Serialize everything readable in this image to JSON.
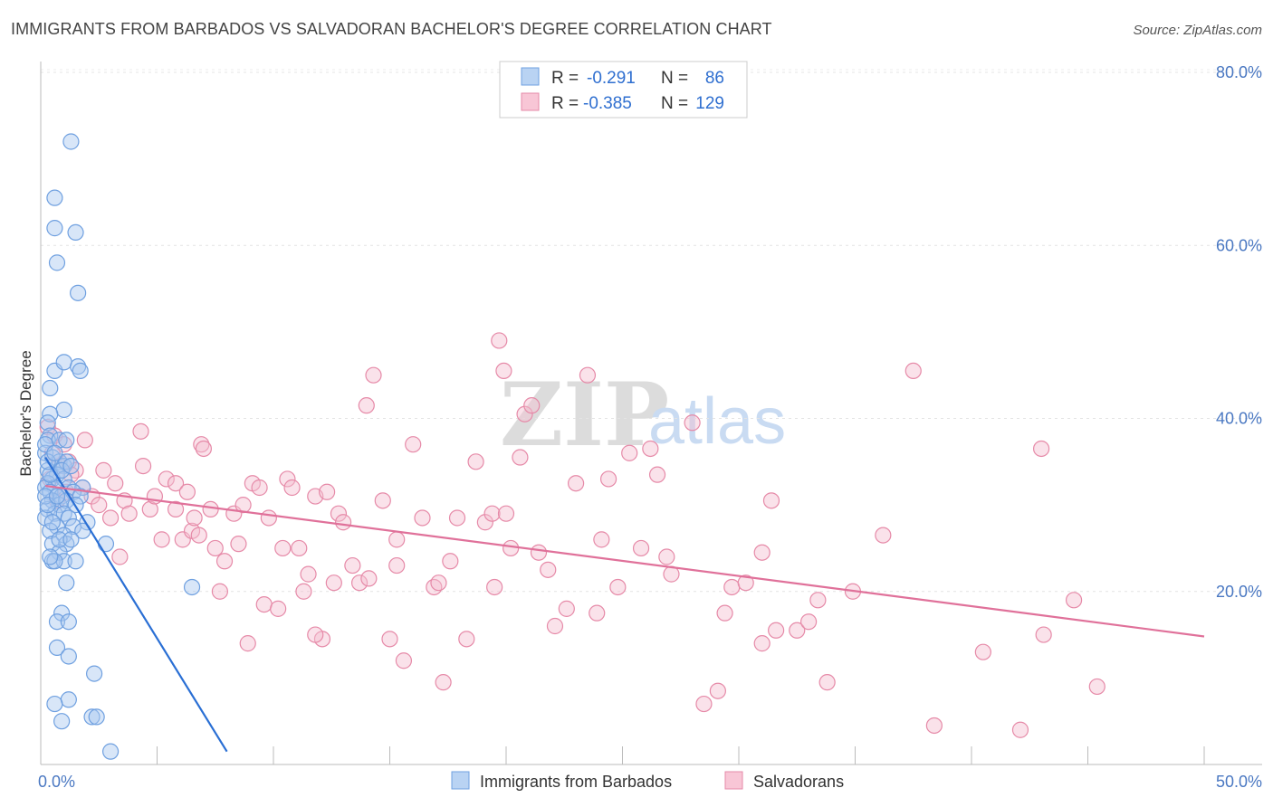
{
  "title": "IMMIGRANTS FROM BARBADOS VS SALVADORAN BACHELOR'S DEGREE CORRELATION CHART",
  "source": "Source: ZipAtlas.com",
  "watermark": {
    "zip": "ZIP",
    "atlas": "atlas"
  },
  "colors": {
    "blue": "#6fa0e0",
    "blue_fill": "#a9c8ef",
    "blue_line": "#2a6fd4",
    "pink": "#e68aa8",
    "pink_fill": "#f4bfd0",
    "pink_line": "#e0719a",
    "axis_label": "#4a78c2"
  },
  "legend": {
    "rows": [
      {
        "r_label": "R =",
        "r_value": "-0.291",
        "n_label": "N =",
        "n_value": "86"
      },
      {
        "r_label": "R =",
        "r_value": "-0.385",
        "n_label": "N =",
        "n_value": "129"
      }
    ]
  },
  "chart_data": {
    "type": "scatter",
    "ylabel": "Bachelor's Degree",
    "xlim": [
      0,
      50
    ],
    "ylim": [
      0,
      80
    ],
    "y_ticks": [
      {
        "v": 20,
        "label": "20.0%"
      },
      {
        "v": 40,
        "label": "40.0%"
      },
      {
        "v": 60,
        "label": "60.0%"
      },
      {
        "v": 80,
        "label": "80.0%"
      }
    ],
    "x_tick_labels": {
      "min": "0.0%",
      "max": "50.0%"
    },
    "series": [
      {
        "name": "Immigrants from Barbados",
        "color": "#6fa0e0",
        "trend": {
          "x0": 0.2,
          "y0": 35.5,
          "x1": 8.0,
          "y1": 1.5
        },
        "points": [
          [
            1.3,
            72
          ],
          [
            0.6,
            65.5
          ],
          [
            0.6,
            62
          ],
          [
            1.5,
            61.5
          ],
          [
            0.7,
            58
          ],
          [
            1.6,
            54.5
          ],
          [
            0.6,
            45.5
          ],
          [
            1.0,
            46.5
          ],
          [
            1.6,
            46
          ],
          [
            1.7,
            45.5
          ],
          [
            0.4,
            43.5
          ],
          [
            1.0,
            41
          ],
          [
            0.4,
            40.5
          ],
          [
            0.3,
            39.5
          ],
          [
            0.4,
            38
          ],
          [
            0.3,
            37.5
          ],
          [
            0.8,
            37.5
          ],
          [
            1.1,
            37.5
          ],
          [
            0.2,
            36
          ],
          [
            0.5,
            35.5
          ],
          [
            0.8,
            35
          ],
          [
            1.0,
            34.5
          ],
          [
            1.1,
            35
          ],
          [
            0.3,
            34
          ],
          [
            0.7,
            33.5
          ],
          [
            0.5,
            33
          ],
          [
            1.0,
            33
          ],
          [
            0.3,
            32.5
          ],
          [
            0.6,
            32
          ],
          [
            1.2,
            32
          ],
          [
            1.8,
            32
          ],
          [
            0.2,
            32
          ],
          [
            0.4,
            31.5
          ],
          [
            0.9,
            31
          ],
          [
            1.4,
            31.5
          ],
          [
            1.7,
            31
          ],
          [
            0.5,
            30.5
          ],
          [
            0.8,
            30
          ],
          [
            1.1,
            30.5
          ],
          [
            1.5,
            30
          ],
          [
            0.3,
            29.5
          ],
          [
            0.6,
            29
          ],
          [
            1.0,
            29
          ],
          [
            0.2,
            28.5
          ],
          [
            1.2,
            28.5
          ],
          [
            2.0,
            28
          ],
          [
            0.7,
            27.5
          ],
          [
            1.4,
            27.5
          ],
          [
            1.8,
            27
          ],
          [
            0.4,
            27
          ],
          [
            1.0,
            26.5
          ],
          [
            0.5,
            25.5
          ],
          [
            1.1,
            25.5
          ],
          [
            2.8,
            25.5
          ],
          [
            0.8,
            24.5
          ],
          [
            0.5,
            23.5
          ],
          [
            1.0,
            23.5
          ],
          [
            1.5,
            23.5
          ],
          [
            0.6,
            23.5
          ],
          [
            1.1,
            21
          ],
          [
            6.5,
            20.5
          ],
          [
            0.9,
            17.5
          ],
          [
            0.7,
            16.5
          ],
          [
            1.2,
            16.5
          ],
          [
            0.7,
            13.5
          ],
          [
            1.2,
            12.5
          ],
          [
            2.3,
            10.5
          ],
          [
            1.2,
            7.5
          ],
          [
            0.6,
            7
          ],
          [
            0.9,
            5
          ],
          [
            2.2,
            5.5
          ],
          [
            2.4,
            5.5
          ],
          [
            3.0,
            1.5
          ],
          [
            0.2,
            37
          ],
          [
            0.2,
            31
          ],
          [
            0.4,
            33.5
          ],
          [
            0.3,
            35
          ],
          [
            0.9,
            34
          ],
          [
            1.3,
            34.5
          ],
          [
            0.6,
            36
          ],
          [
            0.3,
            30
          ],
          [
            0.5,
            28
          ],
          [
            0.8,
            26
          ],
          [
            0.4,
            24
          ],
          [
            1.3,
            26
          ],
          [
            0.7,
            31
          ]
        ]
      },
      {
        "name": "Salvadorans",
        "color": "#e68aa8",
        "trend": {
          "x0": 0.2,
          "y0": 32.2,
          "x1": 50,
          "y1": 14.8
        },
        "points": [
          [
            0.3,
            39
          ],
          [
            0.6,
            38
          ],
          [
            1.0,
            37
          ],
          [
            0.5,
            36
          ],
          [
            1.2,
            35
          ],
          [
            0.8,
            34.5
          ],
          [
            1.5,
            34
          ],
          [
            0.4,
            33
          ],
          [
            1.3,
            33.5
          ],
          [
            1.8,
            32
          ],
          [
            2.2,
            31
          ],
          [
            0.7,
            30.5
          ],
          [
            1.1,
            31.5
          ],
          [
            1.9,
            37.5
          ],
          [
            2.7,
            34
          ],
          [
            3.0,
            28.5
          ],
          [
            3.2,
            32.5
          ],
          [
            3.6,
            30.5
          ],
          [
            3.4,
            24
          ],
          [
            4.3,
            38.5
          ],
          [
            4.4,
            34.5
          ],
          [
            4.7,
            29.5
          ],
          [
            4.9,
            31
          ],
          [
            5.2,
            26
          ],
          [
            5.4,
            33
          ],
          [
            5.8,
            29.5
          ],
          [
            5.8,
            32.5
          ],
          [
            6.1,
            26
          ],
          [
            6.3,
            31.5
          ],
          [
            6.5,
            27
          ],
          [
            6.6,
            28.5
          ],
          [
            6.9,
            37
          ],
          [
            7.0,
            36.5
          ],
          [
            7.3,
            29.5
          ],
          [
            7.5,
            25
          ],
          [
            7.7,
            20
          ],
          [
            7.9,
            23.5
          ],
          [
            8.3,
            29
          ],
          [
            8.5,
            25.5
          ],
          [
            8.7,
            30
          ],
          [
            8.9,
            14
          ],
          [
            9.1,
            32.5
          ],
          [
            9.4,
            32
          ],
          [
            9.6,
            18.5
          ],
          [
            9.8,
            28.5
          ],
          [
            10.2,
            18
          ],
          [
            10.4,
            25
          ],
          [
            10.6,
            33
          ],
          [
            10.8,
            32
          ],
          [
            11.1,
            25
          ],
          [
            11.3,
            20
          ],
          [
            11.5,
            22
          ],
          [
            11.8,
            31
          ],
          [
            12.1,
            14.5
          ],
          [
            12.3,
            31.5
          ],
          [
            12.6,
            21
          ],
          [
            12.8,
            29
          ],
          [
            13.0,
            28
          ],
          [
            13.4,
            23
          ],
          [
            13.7,
            21
          ],
          [
            14.0,
            41.5
          ],
          [
            14.1,
            21.5
          ],
          [
            14.3,
            45
          ],
          [
            14.7,
            30.5
          ],
          [
            15.0,
            14.5
          ],
          [
            15.3,
            23
          ],
          [
            15.6,
            12
          ],
          [
            16.0,
            37
          ],
          [
            16.4,
            28.5
          ],
          [
            16.9,
            20.5
          ],
          [
            17.1,
            21
          ],
          [
            17.3,
            9.5
          ],
          [
            17.6,
            23.5
          ],
          [
            17.9,
            28.5
          ],
          [
            18.3,
            14.5
          ],
          [
            18.7,
            35
          ],
          [
            19.1,
            28
          ],
          [
            19.4,
            29
          ],
          [
            19.7,
            49
          ],
          [
            19.9,
            45.5
          ],
          [
            20.2,
            25
          ],
          [
            20.6,
            35.5
          ],
          [
            20.8,
            40.5
          ],
          [
            21.1,
            41.5
          ],
          [
            21.4,
            24.5
          ],
          [
            21.8,
            22.5
          ],
          [
            22.1,
            16
          ],
          [
            22.6,
            18
          ],
          [
            23.0,
            32.5
          ],
          [
            23.5,
            45
          ],
          [
            23.9,
            17.5
          ],
          [
            24.1,
            26
          ],
          [
            24.4,
            33
          ],
          [
            25.3,
            36
          ],
          [
            25.8,
            25
          ],
          [
            26.2,
            36.5
          ],
          [
            26.5,
            33.5
          ],
          [
            26.9,
            24
          ],
          [
            27.1,
            22
          ],
          [
            28.0,
            39.5
          ],
          [
            28.5,
            7
          ],
          [
            29.1,
            8.5
          ],
          [
            29.4,
            17.5
          ],
          [
            29.7,
            20.5
          ],
          [
            30.3,
            21
          ],
          [
            31.0,
            14
          ],
          [
            31.0,
            24.5
          ],
          [
            31.4,
            30.5
          ],
          [
            31.6,
            15.5
          ],
          [
            32.5,
            15.5
          ],
          [
            33.4,
            19
          ],
          [
            33.8,
            9.5
          ],
          [
            34.9,
            20
          ],
          [
            36.2,
            26.5
          ],
          [
            37.5,
            45.5
          ],
          [
            38.4,
            4.5
          ],
          [
            40.5,
            13
          ],
          [
            42.1,
            4
          ],
          [
            43.1,
            15
          ],
          [
            44.4,
            19
          ],
          [
            45.4,
            9
          ],
          [
            43.0,
            36.5
          ],
          [
            19.5,
            20.5
          ],
          [
            2.5,
            30
          ],
          [
            20.0,
            29
          ],
          [
            11.8,
            15
          ],
          [
            6.8,
            26.5
          ],
          [
            15.3,
            26
          ],
          [
            24.8,
            20.5
          ],
          [
            3.8,
            29
          ],
          [
            33.0,
            16.5
          ]
        ]
      }
    ]
  },
  "bottom_legend": [
    "Immigrants from Barbados",
    "Salvadorans"
  ]
}
